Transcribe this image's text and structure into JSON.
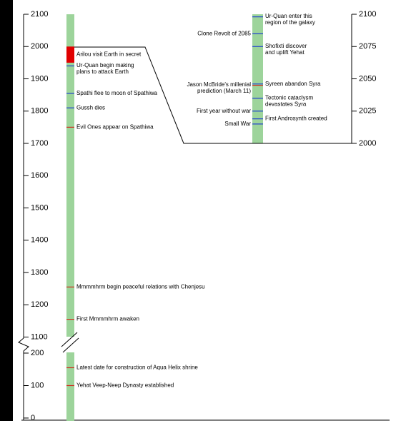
{
  "chart_data": {
    "type": "timeline",
    "axes": [
      {
        "ylim": [
          1100,
          2100
        ],
        "yticks": [
          1100,
          1200,
          1300,
          1400,
          1500,
          1600,
          1700,
          1800,
          1900,
          2000,
          2100
        ],
        "events": [
          {
            "label": [
              "Arilou visit Earth in secret"
            ],
            "span": [
              1950,
              2000
            ],
            "color": "#e00000",
            "side": "right"
          },
          {
            "label": [
              "Ur-Quan begin making",
              "plans to attack Earth"
            ],
            "year": 1940,
            "color": "#1f3fd0",
            "side": "right"
          },
          {
            "label": [
              "Spathi flee to moon of Spathiwa"
            ],
            "year": 1855,
            "color": "#1f3fd0",
            "side": "right"
          },
          {
            "label": [
              "Gussh dies"
            ],
            "year": 1810,
            "color": "#1f3fd0",
            "side": "right"
          },
          {
            "label": [
              "Evil Ones appear on Spathiwa"
            ],
            "year": 1750,
            "color": "#d03020",
            "side": "right"
          },
          {
            "label": [
              "Mmmmhrm begin peaceful relations with Chenjesu"
            ],
            "year": 1255,
            "color": "#d03020",
            "side": "right"
          },
          {
            "label": [
              "First Mmmmhrm awaken"
            ],
            "year": 1155,
            "color": "#d03020",
            "side": "right"
          }
        ]
      },
      {
        "ylim": [
          0,
          200
        ],
        "yticks": [
          0,
          100,
          200
        ],
        "events": [
          {
            "label": [
              "Latest date for construction of Aqua Helix shrine"
            ],
            "year": 155,
            "color": "#d03020",
            "side": "right"
          },
          {
            "label": [
              "Yehat Veep-Neep Dynasty established"
            ],
            "year": 100,
            "color": "#d03020",
            "side": "right"
          }
        ]
      },
      {
        "ylim": [
          2000,
          2100
        ],
        "yticks": [
          2000,
          2025,
          2050,
          2075,
          2100
        ],
        "events": [
          {
            "label": [
              "Ur-Quan enter this",
              "region of the galaxy"
            ],
            "year": 2098,
            "color": "#1f3fd0",
            "side": "right"
          },
          {
            "label": [
              "Clone Revolt of 2085"
            ],
            "year": 2085,
            "color": "#1f3fd0",
            "side": "left"
          },
          {
            "label": [
              "Shofixti discover",
              "and uplift Yehat"
            ],
            "year": 2075,
            "color": "#1f3fd0",
            "side": "right"
          },
          {
            "label": [
              "Jason McBride's millenial",
              "prediction (March 11)"
            ],
            "year": 2045,
            "color": "#d03020",
            "side": "left"
          },
          {
            "label": [
              "Syreen abandon Syra"
            ],
            "year": 2046,
            "color": "#1f3fd0",
            "side": "right"
          },
          {
            "label": [
              "Tectonic cataclysm",
              "devastates Syra"
            ],
            "year": 2035,
            "color": "#1f3fd0",
            "side": "right"
          },
          {
            "label": [
              "First year without war"
            ],
            "year": 2025,
            "color": "#1f3fd0",
            "side": "left"
          },
          {
            "label": [
              "First Androsynth created"
            ],
            "year": 2019,
            "color": "#1f3fd0",
            "side": "right"
          },
          {
            "label": [
              "Small War"
            ],
            "year": 2015,
            "color": "#1f3fd0",
            "side": "left"
          }
        ]
      }
    ]
  }
}
